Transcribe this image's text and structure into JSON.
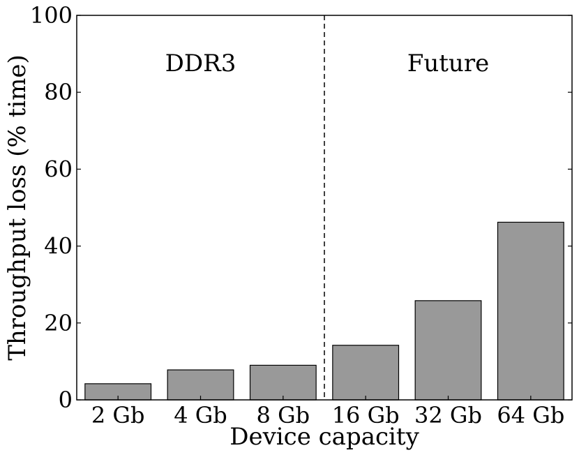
{
  "chart_data": {
    "type": "bar",
    "title": "",
    "xlabel": "Device capacity",
    "ylabel": "Throughput loss (% time)",
    "categories": [
      "2 Gb",
      "4 Gb",
      "8 Gb",
      "16 Gb",
      "32 Gb",
      "64 Gb"
    ],
    "values": [
      4.2,
      7.8,
      9.0,
      14.2,
      25.8,
      46.2
    ],
    "ylim": [
      0,
      100
    ],
    "yticks": [
      "0",
      "20",
      "40",
      "60",
      "80",
      "100"
    ],
    "grid": false,
    "bar_color": "#999999",
    "annotations": [
      {
        "text": "DDR3",
        "group": "left"
      },
      {
        "text": "Future",
        "group": "right"
      }
    ],
    "divider": {
      "style": "dashed",
      "between_categories": [
        "8 Gb",
        "16 Gb"
      ]
    }
  }
}
